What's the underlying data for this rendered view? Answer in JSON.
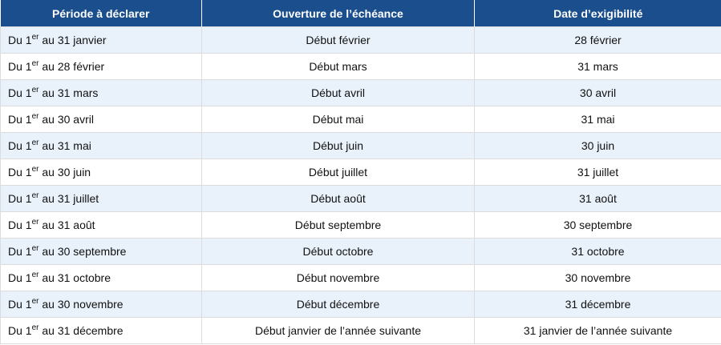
{
  "table": {
    "headers": [
      "Période à déclarer",
      "Ouverture de l’échéance",
      "Date d’exigibilité"
    ],
    "rows": [
      {
        "prefix": "Du 1",
        "sup": "er",
        "suffix": " au 31 janvier",
        "ouverture": "Début février",
        "exigibilite": "28 février"
      },
      {
        "prefix": "Du 1",
        "sup": "er",
        "suffix": " au 28 février",
        "ouverture": "Début mars",
        "exigibilite": "31 mars"
      },
      {
        "prefix": "Du 1",
        "sup": "er",
        "suffix": " au 31 mars",
        "ouverture": "Début avril",
        "exigibilite": "30 avril"
      },
      {
        "prefix": "Du 1",
        "sup": "er",
        "suffix": " au 30 avril",
        "ouverture": "Début mai",
        "exigibilite": "31 mai"
      },
      {
        "prefix": "Du 1",
        "sup": "er",
        "suffix": " au 31 mai",
        "ouverture": "Début juin",
        "exigibilite": "30 juin"
      },
      {
        "prefix": "Du 1",
        "sup": "er",
        "suffix": " au 30 juin",
        "ouverture": "Début juillet",
        "exigibilite": "31 juillet"
      },
      {
        "prefix": "Du 1",
        "sup": "er",
        "suffix": " au 31 juillet",
        "ouverture": "Début août",
        "exigibilite": "31 août"
      },
      {
        "prefix": "Du 1",
        "sup": "er",
        "suffix": " au 31 août",
        "ouverture": "Début septembre",
        "exigibilite": "30 septembre"
      },
      {
        "prefix": "Du 1",
        "sup": "er",
        "suffix": " au 30 septembre",
        "ouverture": "Début octobre",
        "exigibilite": "31 octobre"
      },
      {
        "prefix": "Du 1",
        "sup": "er",
        "suffix": " au 31 octobre",
        "ouverture": "Début novembre",
        "exigibilite": "30 novembre"
      },
      {
        "prefix": "Du 1",
        "sup": "er",
        "suffix": " au 30 novembre",
        "ouverture": "Début décembre",
        "exigibilite": "31 décembre"
      },
      {
        "prefix": "Du 1",
        "sup": "er",
        "suffix": " au 31 décembre",
        "ouverture": "Début janvier de l’année suivante",
        "exigibilite": "31 janvier de l’année suivante"
      }
    ]
  },
  "colors": {
    "header_bg": "#1a4e8c",
    "header_text": "#ffffff",
    "row_alt_bg": "#e9f1fa",
    "row_bg": "#ffffff",
    "border": "#dcdcdc"
  }
}
